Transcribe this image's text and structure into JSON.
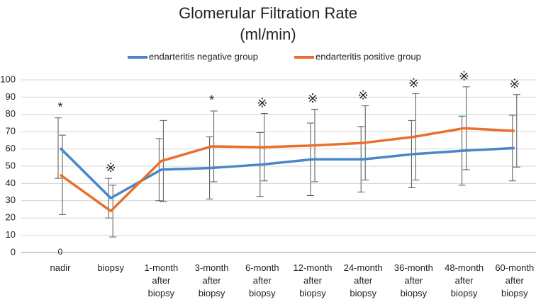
{
  "chart_data": {
    "type": "line",
    "title": "Glomerular Filtration Rate",
    "subtitle": "(ml/min)",
    "categories": [
      "nadir",
      "biopsy",
      "1-month\nafter\nbiopsy",
      "3-month\nafter\nbiopsy",
      "6-month\nafter\nbiopsy",
      "12-month\nafter\nbiopsy",
      "24-month\nafter\nbiopsy",
      "36-month\nafter\nbiopsy",
      "48-month\nafter\nbiopsy",
      "60-month\nafter\nbiopsy"
    ],
    "series": [
      {
        "name": "endarteritis negative group",
        "color": "#4a86c8",
        "values": [
          60.5,
          31.5,
          48,
          49,
          51,
          54,
          54,
          57,
          59,
          60.5
        ],
        "errors": [
          17.5,
          11.5,
          18,
          18,
          18.5,
          21,
          19,
          19.5,
          20,
          19
        ]
      },
      {
        "name": "endarteritis positive group",
        "color": "#e8702a",
        "values": [
          45,
          24,
          53,
          61.5,
          61,
          62,
          63.5,
          67,
          72,
          70.5
        ],
        "errors": [
          23,
          15,
          23.5,
          20.5,
          19.5,
          21,
          21.5,
          25,
          24,
          21
        ]
      }
    ],
    "markers": [
      "*",
      "※",
      null,
      "*",
      "※",
      "※",
      "※",
      "※",
      "※",
      "※"
    ],
    "baseline_note": "0",
    "ylim": [
      0,
      100
    ],
    "yticks": [
      0,
      10,
      20,
      30,
      40,
      50,
      60,
      70,
      80,
      90,
      100
    ],
    "grid": true
  }
}
